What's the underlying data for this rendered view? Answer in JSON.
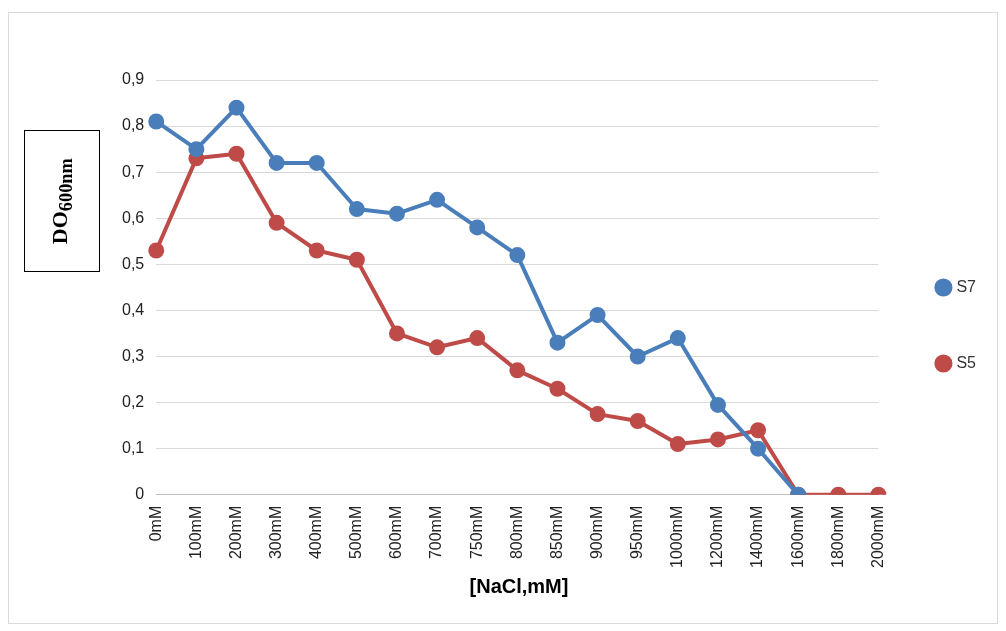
{
  "chart_data": {
    "type": "line",
    "xlabel": "[NaCl,mM]",
    "ylabel": "DO$_{600nm}$",
    "categories": [
      "0mM",
      "100mM",
      "200mM",
      "300mM",
      "400mM",
      "500mM",
      "600mM",
      "700mM",
      "750mM",
      "800mM",
      "850mM",
      "900mM",
      "950mM",
      "1000mM",
      "1200mM",
      "1400mM",
      "1600mM",
      "1800mM",
      "2000mM"
    ],
    "series": [
      {
        "name": "S7",
        "color": "#4a7ebb",
        "values": [
          0.81,
          0.75,
          0.84,
          0.72,
          0.72,
          0.62,
          0.61,
          0.64,
          0.58,
          0.52,
          0.33,
          0.39,
          0.3,
          0.34,
          0.195,
          0.1,
          0,
          null,
          null
        ]
      },
      {
        "name": "S5",
        "color": "#be4b48",
        "values": [
          0.53,
          0.73,
          0.74,
          0.59,
          0.53,
          0.51,
          0.35,
          0.32,
          0.34,
          0.27,
          0.23,
          0.175,
          0.16,
          0.11,
          0.12,
          0.14,
          0,
          0,
          0
        ]
      }
    ],
    "ylim": [
      0,
      0.9
    ],
    "yticks": [
      {
        "value": 0,
        "label": "0"
      },
      {
        "value": 0.1,
        "label": "0,1"
      },
      {
        "value": 0.2,
        "label": "0,2"
      },
      {
        "value": 0.3,
        "label": "0,3"
      },
      {
        "value": 0.4,
        "label": "0,4"
      },
      {
        "value": 0.5,
        "label": "0,5"
      },
      {
        "value": 0.6,
        "label": "0,6"
      },
      {
        "value": 0.7,
        "label": "0,7"
      },
      {
        "value": 0.8,
        "label": "0,8"
      },
      {
        "value": 0.9,
        "label": "0,9"
      }
    ],
    "grid": "y",
    "legend": "right",
    "marker": "circle",
    "line_style": "solid"
  }
}
